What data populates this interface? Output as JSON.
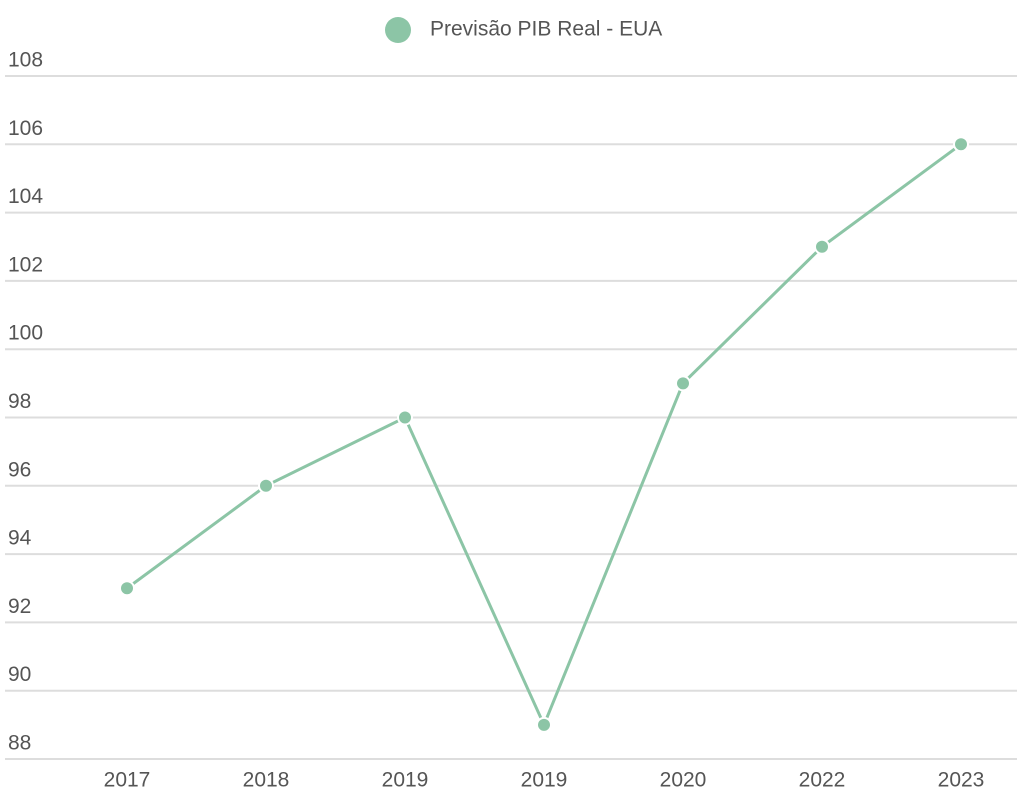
{
  "chart_data": {
    "type": "line",
    "categories": [
      "2017",
      "2018",
      "2019",
      "2019",
      "2020",
      "2022",
      "2023"
    ],
    "series": [
      {
        "name": "Previsão PIB Real - EUA",
        "color": "#8cc5a6",
        "values": [
          93,
          96,
          98,
          89,
          99,
          103,
          106
        ]
      }
    ],
    "ylim": [
      88,
      108
    ],
    "yticks": [
      88,
      90,
      92,
      94,
      96,
      98,
      100,
      102,
      104,
      106,
      108
    ],
    "grid": true,
    "legend": "top"
  }
}
